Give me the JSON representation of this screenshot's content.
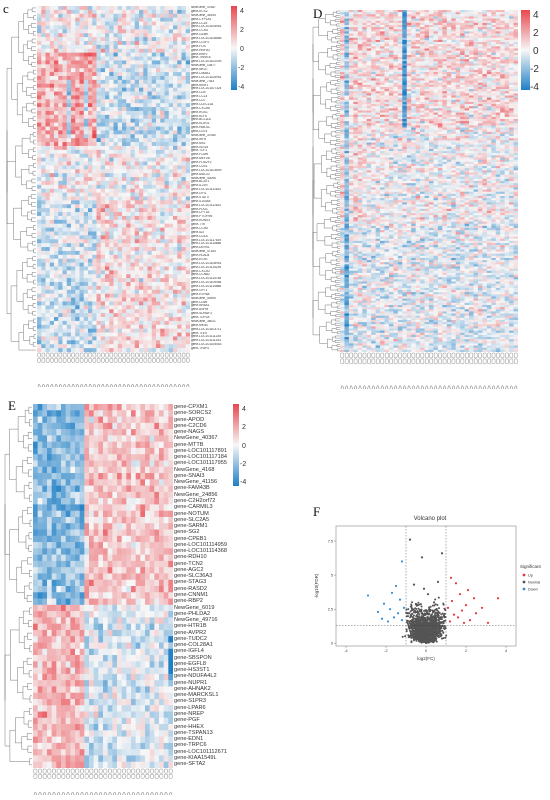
{
  "panels": {
    "c": {
      "letter": "c",
      "legend_ticks": [
        "4",
        "2",
        "0",
        "-2",
        "-4"
      ]
    },
    "d": {
      "letter": "D",
      "legend_ticks": [
        "4",
        "2",
        "0",
        "-2",
        "-4"
      ]
    },
    "e": {
      "letter": "E",
      "legend_ticks": [
        "4",
        "2",
        "0",
        "-2",
        "-4"
      ],
      "genes": [
        "gene-CPXM1",
        "gene-SORCS2",
        "gene-APOD",
        "gene-C2CD6",
        "gene-NAGS",
        "NewGene_40367",
        "gene-MTTB",
        "gene-LOC101117891",
        "gene-LOC101117184",
        "gene-LOC101117955",
        "NewGene_4168",
        "gene-SNAI3",
        "NewGene_41156",
        "gene-FAM43B",
        "NewGene_24856",
        "gene-C2H2orf72",
        "gene-CARMIL3",
        "gene-NOTUM",
        "gene-SLC2A5",
        "gene-SARM1",
        "gene-SG2",
        "gene-CPEB1",
        "gene-LOC101114959",
        "gene-LOC101114368",
        "gene-RDH10",
        "gene-TCN2",
        "gene-AGC2",
        "gene-SLC36A3",
        "gene-STAG3",
        "gene-RASD2",
        "gene-CNNM1",
        "gene-RBP2",
        "NewGene_6019",
        "gene-PHLDA2",
        "NewGene_49716",
        "gene-HTR1B",
        "gene-AVPR2",
        "gene-TUDC2",
        "gene-COL28A1",
        "gene-IGFL4",
        "gene-SBSPON",
        "gene-EGFL8",
        "gene-HS3ST1",
        "gene-NDUFA4L2",
        "gene-NUPR1",
        "gene-AHNAK2",
        "gene-MARCKSL1",
        "gene-S1PR3",
        "gene-LPAR6",
        "gene-NREP",
        "gene-PGF",
        "gene-HHEX",
        "gene-TSPAN13",
        "gene-EDN1",
        "gene-TRPC6",
        "gene-LOC101112671",
        "gene-KIAA1549L",
        "gene-SFTA2"
      ]
    },
    "c_genes": [
      "NewGene_47687",
      "gene-KCS2",
      "NewGene_36195",
      "gene-CYP1A1",
      "gene-CCL5",
      "gene-LOC101105951",
      "gene-CCR4",
      "gene-GZMK",
      "gene-LOC101108866",
      "gene-CLSP2",
      "gene-FOS",
      "gene-HNF4G",
      "gene-RBPJ",
      "gene-TRIM15",
      "gene-LOC101102009",
      "NewGene_10877",
      "gene-NKG7",
      "gene-CMAB1",
      "gene-LOC101105951",
      "NewGene_7343",
      "gene-MSR1",
      "gene-LOC101107324",
      "gene-CD9",
      "gene-CCL4",
      "gene-CD7",
      "gene-CLEC11A",
      "gene-CXCR6",
      "gene-RGS1",
      "gene-KLF5",
      "gene-BCL11A",
      "gene-KLRG1",
      "gene-HMLSC",
      "gene-CD74",
      "NewGene_37080",
      "gene-IRF8",
      "gene-MX1",
      "gene-ISG15",
      "gene-TCF1",
      "gene-FCMR",
      "gene-MEF2B",
      "gene-POU2F2",
      "gene-CUX1",
      "gene-LOC101103609",
      "gene-MUC22",
      "NewGene_40095",
      "gene-BCAT1",
      "gene-IL21R",
      "gene-LOC101112822",
      "gene-GFI1",
      "gene-STAT4",
      "gene-S100A4",
      "gene-LOC101112622",
      "gene-PDG1",
      "gene-CPT1A",
      "gene-PTGFRN",
      "gene-RUNX3",
      "gene-TTK",
      "gene-CCR5",
      "gene-ID2",
      "gene-CD1A",
      "gene-LOC101117819",
      "gene-LOC101115686",
      "gene-DEFB1",
      "NewGene_47354",
      "gene-HLAD4",
      "gene-EGR1",
      "gene-LOC101108951",
      "gene-LOC101115294",
      "gene-CXCR2",
      "gene-CCNA2",
      "gene-LOC101114785",
      "gene-LOC101109984",
      "gene-LOC101115866",
      "gene-GPT1",
      "gene-HTR6A",
      "NewGene_40999",
      "gene-CD69",
      "gene-NR4A1",
      "gene-ASPM",
      "gene-SDHAF3",
      "gene-TOP2A",
      "NewGene_36021",
      "gene-MKI67",
      "gene-LOC101103711",
      "gene-TLE4",
      "gene-LOC101111235",
      "gene-LOC101111243",
      "gene-LOC101105453",
      "gene-TFAP4"
    ],
    "f": {
      "letter": "F",
      "title": "Volcano plot",
      "xlabel": "log2(FC)",
      "ylabel": "-log10(FDR)",
      "legend_title": "Significant",
      "legend_items": [
        {
          "label": "Up",
          "color": "#e8383d"
        },
        {
          "label": "Normal",
          "color": "#555555"
        },
        {
          "label": "Down",
          "color": "#3a8fd1"
        }
      ],
      "x_ticks": [
        "-4",
        "-2",
        "0",
        "2",
        "4"
      ],
      "y_ticks": [
        "0",
        "2.5",
        "5",
        "7.5"
      ]
    }
  },
  "colors": {
    "high": "#e8474e",
    "mid": "#f7f7f7",
    "low": "#1f7fc6"
  },
  "chart_data": {
    "type": "scatter",
    "title": "Volcano plot",
    "xlabel": "log2(FC)",
    "ylabel": "-log10(FDR)",
    "xlim": [
      -4.5,
      4.5
    ],
    "ylim": [
      -0.2,
      8.6
    ],
    "thresholds": {
      "log2fc": [
        -1,
        1
      ],
      "neg_log10_fdr": 1.3
    },
    "legend": {
      "title": "Significant",
      "entries": [
        "Up",
        "Normal",
        "Down"
      ],
      "position": "right"
    },
    "series": [
      {
        "name": "Up",
        "color": "#e8383d",
        "points": [
          [
            1.2,
            1.6
          ],
          [
            1.4,
            2.1
          ],
          [
            1.6,
            1.9
          ],
          [
            1.8,
            2.4
          ],
          [
            2.0,
            2.8
          ],
          [
            2.2,
            1.7
          ],
          [
            1.3,
            3.1
          ],
          [
            1.7,
            3.6
          ],
          [
            2.5,
            2.2
          ],
          [
            2.8,
            2.6
          ],
          [
            3.1,
            1.5
          ],
          [
            1.5,
            4.4
          ],
          [
            2.1,
            3.9
          ],
          [
            1.1,
            2.6
          ],
          [
            1.9,
            1.5
          ],
          [
            2.4,
            3.3
          ],
          [
            1.25,
            4.8
          ],
          [
            3.6,
            3.3
          ]
        ]
      },
      {
        "name": "Down",
        "color": "#3a8fd1",
        "points": [
          [
            -1.2,
            1.7
          ],
          [
            -1.4,
            2.2
          ],
          [
            -1.6,
            1.9
          ],
          [
            -1.8,
            2.5
          ],
          [
            -2.1,
            2.9
          ],
          [
            -1.3,
            3.2
          ],
          [
            -1.7,
            3.7
          ],
          [
            -2.4,
            2.3
          ],
          [
            -1.1,
            2.6
          ],
          [
            -1.9,
            1.6
          ],
          [
            -1.5,
            4.2
          ],
          [
            -2.9,
            3.5
          ],
          [
            -1.2,
            6.0
          ],
          [
            -2.2,
            1.8
          ]
        ]
      },
      {
        "name": "Normal",
        "color": "#555555",
        "points": [
          [
            0.0,
            0.2
          ],
          [
            0.3,
            0.8
          ],
          [
            -0.3,
            0.7
          ],
          [
            0.5,
            1.3
          ],
          [
            -0.5,
            1.2
          ],
          [
            0.7,
            1.8
          ],
          [
            -0.7,
            1.7
          ],
          [
            0.2,
            2.4
          ],
          [
            -0.2,
            2.2
          ],
          [
            0.4,
            3.0
          ],
          [
            -0.4,
            2.8
          ],
          [
            0.1,
            3.6
          ],
          [
            -0.1,
            4.0
          ],
          [
            0.6,
            4.5
          ],
          [
            -0.6,
            4.3
          ],
          [
            -0.2,
            6.3
          ],
          [
            0.9,
            2.0
          ],
          [
            -0.9,
            2.2
          ],
          [
            0.8,
            6.6
          ],
          [
            -0.8,
            7.6
          ]
        ]
      }
    ]
  }
}
